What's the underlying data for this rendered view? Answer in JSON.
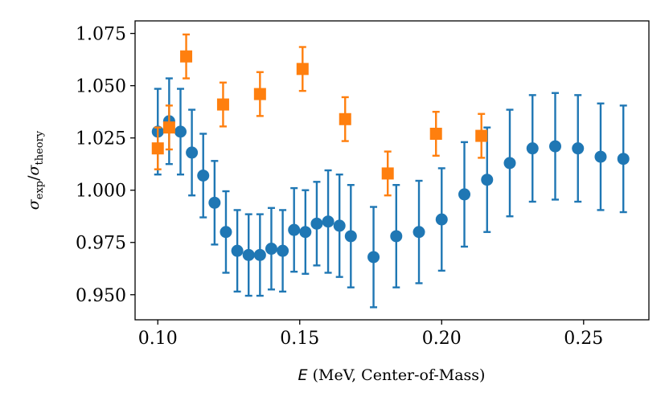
{
  "chart_data": {
    "type": "scatter",
    "xlabel_symbol": "E",
    "xlabel_text": " (MeV, Center-of-Mass)",
    "ylabel": {
      "base1": "σ",
      "sub1": "exp",
      "sep": "/",
      "base2": "σ",
      "sub2": "theory"
    },
    "xlim": [
      0.092,
      0.273
    ],
    "ylim": [
      0.938,
      1.081
    ],
    "xticks": [
      {
        "value": 0.1,
        "label": "0.10"
      },
      {
        "value": 0.15,
        "label": "0.15"
      },
      {
        "value": 0.2,
        "label": "0.20"
      },
      {
        "value": 0.25,
        "label": "0.25"
      }
    ],
    "yticks": [
      {
        "value": 0.95,
        "label": "0.950"
      },
      {
        "value": 0.975,
        "label": "0.975"
      },
      {
        "value": 1.0,
        "label": "1.000"
      },
      {
        "value": 1.025,
        "label": "1.025"
      },
      {
        "value": 1.05,
        "label": "1.050"
      },
      {
        "value": 1.075,
        "label": "1.075"
      }
    ],
    "grid": false,
    "series": [
      {
        "marker": "circle",
        "color": "#1f77b4",
        "points": [
          {
            "x": 0.1,
            "y": 1.028,
            "err": 0.0205
          },
          {
            "x": 0.104,
            "y": 1.033,
            "err": 0.0205
          },
          {
            "x": 0.108,
            "y": 1.028,
            "err": 0.0205
          },
          {
            "x": 0.112,
            "y": 1.018,
            "err": 0.0205
          },
          {
            "x": 0.116,
            "y": 1.007,
            "err": 0.02
          },
          {
            "x": 0.12,
            "y": 0.994,
            "err": 0.02
          },
          {
            "x": 0.124,
            "y": 0.98,
            "err": 0.0195
          },
          {
            "x": 0.128,
            "y": 0.971,
            "err": 0.0195
          },
          {
            "x": 0.132,
            "y": 0.969,
            "err": 0.0195
          },
          {
            "x": 0.136,
            "y": 0.969,
            "err": 0.0195
          },
          {
            "x": 0.14,
            "y": 0.972,
            "err": 0.0195
          },
          {
            "x": 0.144,
            "y": 0.971,
            "err": 0.0195
          },
          {
            "x": 0.148,
            "y": 0.981,
            "err": 0.02
          },
          {
            "x": 0.152,
            "y": 0.98,
            "err": 0.02
          },
          {
            "x": 0.156,
            "y": 0.984,
            "err": 0.02
          },
          {
            "x": 0.16,
            "y": 0.985,
            "err": 0.0245
          },
          {
            "x": 0.164,
            "y": 0.983,
            "err": 0.0245
          },
          {
            "x": 0.168,
            "y": 0.978,
            "err": 0.0245
          },
          {
            "x": 0.176,
            "y": 0.968,
            "err": 0.024
          },
          {
            "x": 0.184,
            "y": 0.978,
            "err": 0.0245
          },
          {
            "x": 0.192,
            "y": 0.98,
            "err": 0.0245
          },
          {
            "x": 0.2,
            "y": 0.986,
            "err": 0.0245
          },
          {
            "x": 0.208,
            "y": 0.998,
            "err": 0.025
          },
          {
            "x": 0.216,
            "y": 1.005,
            "err": 0.025
          },
          {
            "x": 0.224,
            "y": 1.013,
            "err": 0.0255
          },
          {
            "x": 0.232,
            "y": 1.02,
            "err": 0.0255
          },
          {
            "x": 0.24,
            "y": 1.021,
            "err": 0.0255
          },
          {
            "x": 0.248,
            "y": 1.02,
            "err": 0.0255
          },
          {
            "x": 0.256,
            "y": 1.016,
            "err": 0.0255
          },
          {
            "x": 0.264,
            "y": 1.015,
            "err": 0.0255
          }
        ]
      },
      {
        "marker": "square",
        "color": "#ff7f0e",
        "points": [
          {
            "x": 0.1,
            "y": 1.02,
            "err": 0.01
          },
          {
            "x": 0.104,
            "y": 1.03,
            "err": 0.0105
          },
          {
            "x": 0.11,
            "y": 1.064,
            "err": 0.0105
          },
          {
            "x": 0.123,
            "y": 1.041,
            "err": 0.0105
          },
          {
            "x": 0.136,
            "y": 1.046,
            "err": 0.0105
          },
          {
            "x": 0.151,
            "y": 1.058,
            "err": 0.0105
          },
          {
            "x": 0.166,
            "y": 1.034,
            "err": 0.0105
          },
          {
            "x": 0.181,
            "y": 1.008,
            "err": 0.0105
          },
          {
            "x": 0.198,
            "y": 1.027,
            "err": 0.0105
          },
          {
            "x": 0.214,
            "y": 1.026,
            "err": 0.0105
          }
        ]
      }
    ]
  }
}
